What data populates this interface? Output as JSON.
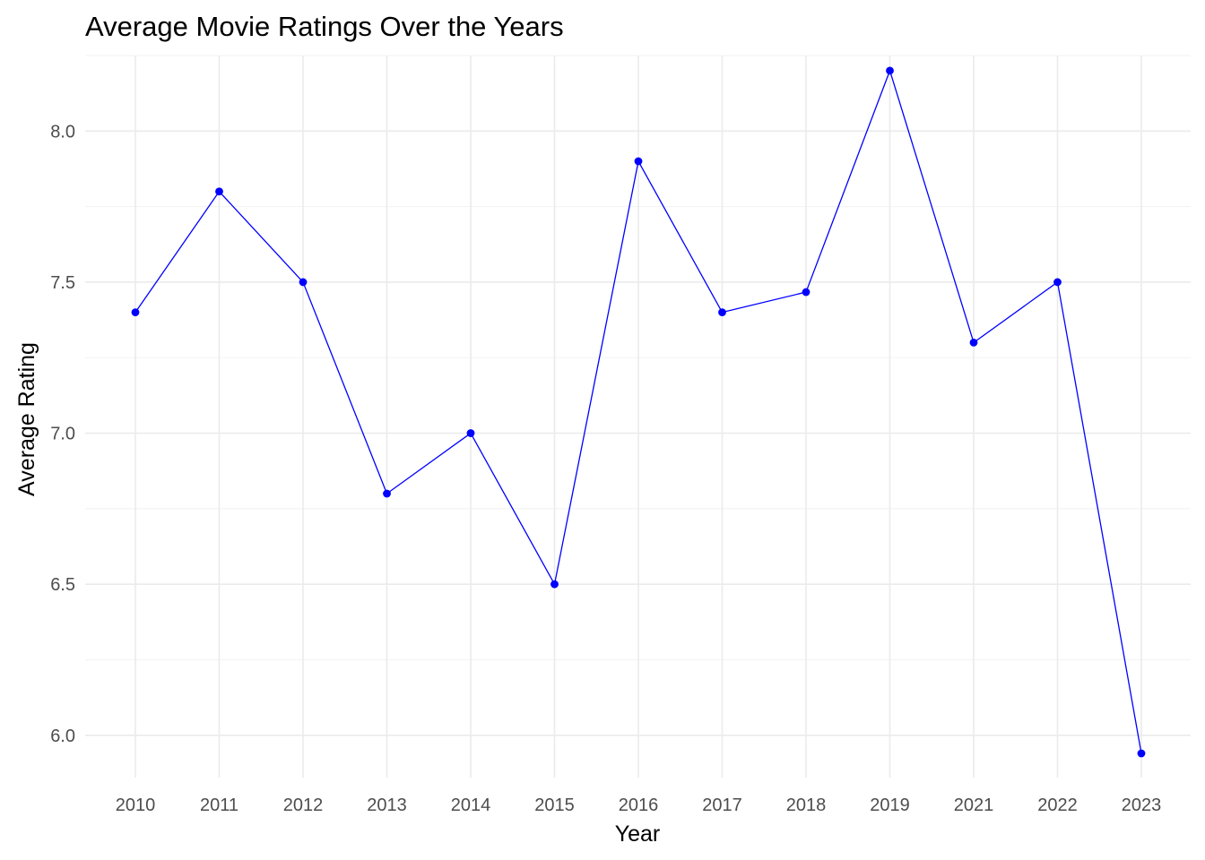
{
  "chart_data": {
    "type": "line",
    "title": "Average Movie Ratings Over the Years",
    "xlabel": "Year",
    "ylabel": "Average Rating",
    "categories": [
      "2010",
      "2011",
      "2012",
      "2013",
      "2014",
      "2015",
      "2016",
      "2017",
      "2018",
      "2019",
      "2021",
      "2022",
      "2023"
    ],
    "series": [
      {
        "values": [
          7.4,
          7.8,
          7.5,
          6.8,
          7.0,
          6.5,
          7.9,
          7.4,
          7.467,
          8.2,
          7.3,
          7.5,
          5.94
        ]
      }
    ],
    "ylim": [
      5.86,
      8.25
    ],
    "yticks": [
      6.0,
      6.5,
      7.0,
      7.5,
      8.0
    ],
    "ytick_labels": [
      "6.0",
      "6.5",
      "7.0",
      "7.5",
      "8.0"
    ],
    "grid": true,
    "legend": "none",
    "colors": {
      "line": "#0000ff",
      "grid_major": "#ebebeb",
      "grid_minor": "#f3f3f3",
      "tick_text": "#4d4d4d",
      "background": "#ffffff"
    }
  }
}
